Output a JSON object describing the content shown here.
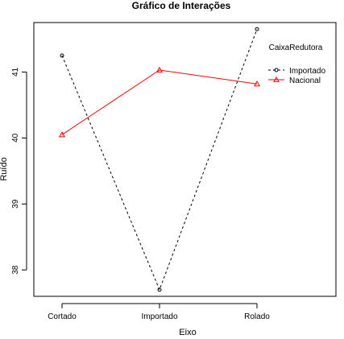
{
  "chart_data": {
    "type": "line",
    "title": "Gráfico de Interações",
    "xlabel": "Eixo",
    "ylabel": "Ruído",
    "categories": [
      "Cortado",
      "Importado",
      "Rolado"
    ],
    "yticks": [
      "38",
      "39",
      "40",
      "41"
    ],
    "ylim": [
      37.6,
      41.75
    ],
    "legend": {
      "title": "CaixaRedutora",
      "placement": "top-right"
    },
    "series": [
      {
        "name": "Importado",
        "values": [
          41.25,
          37.7,
          41.65
        ],
        "color": "#000000",
        "line_style": "dashed",
        "marker": "circle"
      },
      {
        "name": "Nacional",
        "values": [
          40.05,
          41.03,
          40.82
        ],
        "color": "#ff0000",
        "line_style": "solid",
        "marker": "triangle"
      }
    ],
    "grid": false
  }
}
